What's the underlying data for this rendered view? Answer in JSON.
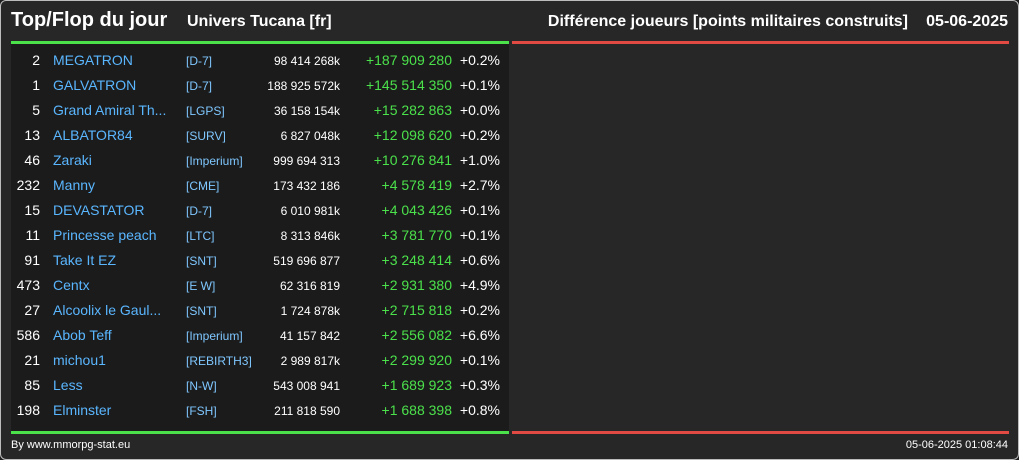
{
  "header": {
    "title": "Top/Flop du jour",
    "universe": "Univers Tucana [fr]",
    "metric": "Différence joueurs [points militaires construits]",
    "date": "05-06-2025"
  },
  "colors": {
    "top_accent": "#4be14b",
    "flop_accent": "#e04a43",
    "player_link": "#5ab6ff"
  },
  "players": [
    {
      "rank": "2",
      "name": "MEGATRON",
      "alliance": "[D-7]",
      "points": "98 414 268k",
      "diff": "+187 909 280",
      "pct": "+0.2%"
    },
    {
      "rank": "1",
      "name": "GALVATRON",
      "alliance": "[D-7]",
      "points": "188 925 572k",
      "diff": "+145 514 350",
      "pct": "+0.1%"
    },
    {
      "rank": "5",
      "name": "Grand Amiral Th...",
      "alliance": "[LGPS]",
      "points": "36 158 154k",
      "diff": "+15 282 863",
      "pct": "+0.0%"
    },
    {
      "rank": "13",
      "name": "ALBATOR84",
      "alliance": "[SURV]",
      "points": "6 827 048k",
      "diff": "+12 098 620",
      "pct": "+0.2%"
    },
    {
      "rank": "46",
      "name": "Zaraki",
      "alliance": "[Imperium]",
      "points": "999 694 313",
      "diff": "+10 276 841",
      "pct": "+1.0%"
    },
    {
      "rank": "232",
      "name": "Manny",
      "alliance": "[CME]",
      "points": "173 432 186",
      "diff": "+4 578 419",
      "pct": "+2.7%"
    },
    {
      "rank": "15",
      "name": "DEVASTATOR",
      "alliance": "[D-7]",
      "points": "6 010 981k",
      "diff": "+4 043 426",
      "pct": "+0.1%"
    },
    {
      "rank": "11",
      "name": "Princesse peach",
      "alliance": "[LTC]",
      "points": "8 313 846k",
      "diff": "+3 781 770",
      "pct": "+0.1%"
    },
    {
      "rank": "91",
      "name": "Take It EZ",
      "alliance": "[SNT]",
      "points": "519 696 877",
      "diff": "+3 248 414",
      "pct": "+0.6%"
    },
    {
      "rank": "473",
      "name": "Centx",
      "alliance": "[E W]",
      "points": "62 316 819",
      "diff": "+2 931 380",
      "pct": "+4.9%"
    },
    {
      "rank": "27",
      "name": "Alcoolix le Gaul...",
      "alliance": "[SNT]",
      "points": "1 724 878k",
      "diff": "+2 715 818",
      "pct": "+0.2%"
    },
    {
      "rank": "586",
      "name": "Abob Teff",
      "alliance": "[Imperium]",
      "points": "41 157 842",
      "diff": "+2 556 082",
      "pct": "+6.6%"
    },
    {
      "rank": "21",
      "name": "michou1",
      "alliance": "[REBIRTH3]",
      "points": "2 989 817k",
      "diff": "+2 299 920",
      "pct": "+0.1%"
    },
    {
      "rank": "85",
      "name": "Less",
      "alliance": "[N-W]",
      "points": "543 008 941",
      "diff": "+1 689 923",
      "pct": "+0.3%"
    },
    {
      "rank": "198",
      "name": "Elminster",
      "alliance": "[FSH]",
      "points": "211 818 590",
      "diff": "+1 688 398",
      "pct": "+0.8%"
    }
  ],
  "footer": {
    "credit": "By www.mmorpg-stat.eu",
    "timestamp": "05-06-2025 01:08:44"
  }
}
